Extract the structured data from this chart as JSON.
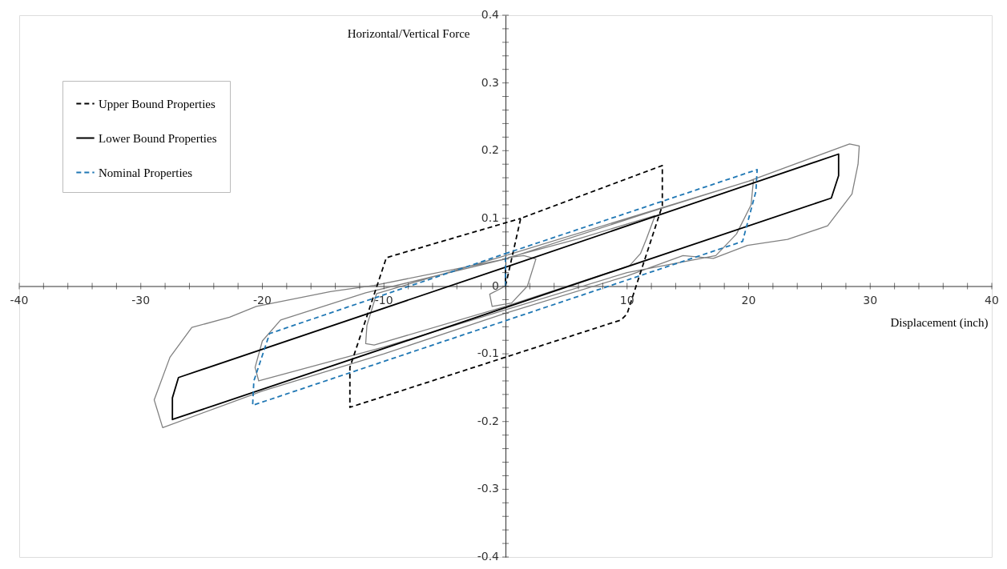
{
  "chart_data": {
    "type": "line",
    "xlabel": "Displacement (inch)",
    "ylabel": "Horizontal/Vertical Force",
    "xlim": [
      -40,
      40
    ],
    "ylim": [
      -0.4,
      0.4
    ],
    "xticks": [
      -40,
      {
        "value": -38,
        "label": null
      },
      {
        "value": -36,
        "label": null
      },
      {
        "value": -34,
        "label": null
      },
      {
        "value": -32,
        "label": null
      },
      -30,
      {
        "value": -28,
        "label": null
      },
      {
        "value": -26,
        "label": null
      },
      {
        "value": -24,
        "label": null
      },
      {
        "value": -22,
        "label": null
      },
      -20,
      {
        "value": -18,
        "label": null
      },
      {
        "value": -16,
        "label": null
      },
      {
        "value": -14,
        "label": null
      },
      {
        "value": -12,
        "label": null
      },
      -10,
      {
        "value": -8,
        "label": null
      },
      {
        "value": -6,
        "label": null
      },
      {
        "value": -4,
        "label": null
      },
      {
        "value": -2,
        "label": null
      },
      {
        "value": 0,
        "label": null
      },
      {
        "value": 2,
        "label": null
      },
      {
        "value": 4,
        "label": null
      },
      {
        "value": 6,
        "label": null
      },
      {
        "value": 8,
        "label": null
      },
      10,
      {
        "value": 12,
        "label": null
      },
      {
        "value": 14,
        "label": null
      },
      {
        "value": 16,
        "label": null
      },
      {
        "value": 18,
        "label": null
      },
      20,
      {
        "value": 22,
        "label": null
      },
      {
        "value": 24,
        "label": null
      },
      {
        "value": 26,
        "label": null
      },
      {
        "value": 28,
        "label": null
      },
      30,
      {
        "value": 32,
        "label": null
      },
      {
        "value": 34,
        "label": null
      },
      {
        "value": 36,
        "label": null
      },
      {
        "value": 38,
        "label": null
      },
      40
    ],
    "yticks": [
      -0.4,
      {
        "value": -0.38,
        "label": null
      },
      {
        "value": -0.36,
        "label": null
      },
      {
        "value": -0.34,
        "label": null
      },
      {
        "value": -0.32,
        "label": null
      },
      -0.3,
      {
        "value": -0.28,
        "label": null
      },
      {
        "value": -0.26,
        "label": null
      },
      {
        "value": -0.24,
        "label": null
      },
      {
        "value": -0.22,
        "label": null
      },
      -0.2,
      {
        "value": -0.18,
        "label": null
      },
      {
        "value": -0.16,
        "label": null
      },
      {
        "value": -0.14,
        "label": null
      },
      {
        "value": -0.12,
        "label": null
      },
      -0.1,
      {
        "value": -0.08,
        "label": null
      },
      {
        "value": -0.06,
        "label": null
      },
      {
        "value": -0.04,
        "label": null
      },
      {
        "value": -0.02,
        "label": null
      },
      0,
      {
        "value": 0.02,
        "label": null
      },
      {
        "value": 0.04,
        "label": null
      },
      {
        "value": 0.06,
        "label": null
      },
      {
        "value": 0.08,
        "label": null
      },
      0.1,
      {
        "value": 0.12,
        "label": null
      },
      {
        "value": 0.14,
        "label": null
      },
      {
        "value": 0.16,
        "label": null
      },
      {
        "value": 0.18,
        "label": null
      },
      0.2,
      {
        "value": 0.22,
        "label": null
      },
      {
        "value": 0.24,
        "label": null
      },
      {
        "value": 0.26,
        "label": null
      },
      {
        "value": 0.28,
        "label": null
      },
      0.3,
      {
        "value": 0.32,
        "label": null
      },
      {
        "value": 0.34,
        "label": null
      },
      {
        "value": 0.36,
        "label": null
      },
      {
        "value": 0.38,
        "label": null
      },
      0.4
    ],
    "grid": false,
    "legend": "top left",
    "marker": "none",
    "series": [
      {
        "color": "#808080",
        "line_style": "solid",
        "x": [
          0,
          -1.3,
          -1.1,
          0.5,
          1.8,
          2.5,
          1.5,
          0.2,
          6,
          12.3,
          11.6,
          11.1,
          10.2,
          0,
          -10.8,
          -11.5,
          -11.4,
          -10.6,
          0,
          10,
          20.4,
          20.2,
          19.0,
          17.3,
          10,
          0,
          -10,
          -20.3,
          -20.6,
          -20.0,
          -18.5,
          -11.5,
          0,
          12,
          20,
          28.3,
          29.1,
          29,
          28.5,
          26.5,
          23.2,
          19.9,
          17.1,
          14.6,
          10,
          0,
          -10,
          -20,
          -28.2,
          -28.9,
          -27.6,
          -25.8,
          -22.7,
          -20.5,
          -14.4,
          -10.8,
          0
        ],
        "values": [
          0,
          -0.012,
          -0.03,
          -0.025,
          0.0,
          0.04,
          0.045,
          0.042,
          0.07,
          0.104,
          0.07,
          0.048,
          0.03,
          -0.03,
          -0.087,
          -0.085,
          -0.058,
          -0.011,
          0.045,
          0.1,
          0.157,
          0.12,
          0.077,
          0.045,
          0.02,
          -0.035,
          -0.09,
          -0.14,
          -0.12,
          -0.081,
          -0.05,
          -0.01,
          0.04,
          0.11,
          0.155,
          0.21,
          0.207,
          0.18,
          0.136,
          0.089,
          0.069,
          0.06,
          0.041,
          0.045,
          0.015,
          -0.04,
          -0.1,
          -0.155,
          -0.209,
          -0.168,
          -0.105,
          -0.061,
          -0.046,
          -0.03,
          -0.008,
          0.001,
          0.04
        ]
      },
      {
        "name": "Upper Bound Properties",
        "color": "#000000",
        "line_style": "dashed",
        "x": [
          0,
          1.25,
          12.9,
          12.9,
          10,
          9.5,
          -12.8,
          -12.8,
          -9.8,
          1.25
        ],
        "values": [
          0,
          0.1,
          0.178,
          0.119,
          -0.041,
          -0.05,
          -0.179,
          -0.12,
          0.042,
          0.1
        ]
      },
      {
        "name": "Lower Bound Properties",
        "color": "#000000",
        "line_style": "solid",
        "x": [
          0,
          0,
          27.4,
          27.4,
          26.8,
          -27.4,
          -27.4,
          -26.9,
          0
        ],
        "values": [
          0,
          0.028,
          0.195,
          0.163,
          0.13,
          -0.197,
          -0.165,
          -0.135,
          0.028
        ]
      },
      {
        "name": "Nominal Properties",
        "color": "#1f77b4",
        "line_style": "dashed",
        "x": [
          0,
          0,
          20.7,
          20.6,
          19.5,
          -20.8,
          -20.7,
          -19.4,
          0
        ],
        "values": [
          0,
          0.048,
          0.172,
          0.14,
          0.066,
          -0.176,
          -0.14,
          -0.07,
          0.048
        ]
      }
    ]
  }
}
